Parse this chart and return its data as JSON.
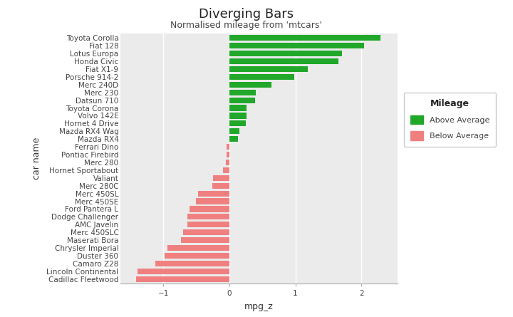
{
  "title": "Diverging Bars",
  "subtitle": "Normalised mileage from 'mtcars'",
  "xlabel": "mpg_z",
  "ylabel": "car name",
  "cars": [
    "Toyota Corolla",
    "Fiat 128",
    "Lotus Europa",
    "Honda Civic",
    "Fiat X1-9",
    "Porsche 914-2",
    "Merc 240D",
    "Merc 230",
    "Datsun 710",
    "Toyota Corona",
    "Volvo 142E",
    "Hornet 4 Drive",
    "Mazda RX4 Wag",
    "Mazda RX4",
    "Ferrari Dino",
    "Pontiac Firebird",
    "Merc 280",
    "Hornet Sportabout",
    "Valiant",
    "Merc 280C",
    "Merc 450SL",
    "Merc 450SE",
    "Ford Pantera L",
    "Dodge Challenger",
    "AMC Javelin",
    "Merc 450SLC",
    "Maserati Bora",
    "Chrysler Imperial",
    "Duster 360",
    "Camaro Z28",
    "Lincoln Continental",
    "Cadillac Fleetwood"
  ],
  "mpg_z": [
    2.2913,
    2.0452,
    1.7104,
    1.6563,
    1.1884,
    0.9806,
    0.6348,
    0.4038,
    0.3883,
    0.2609,
    0.2609,
    0.2454,
    0.1473,
    0.1318,
    -0.0425,
    -0.0425,
    -0.058,
    -0.1001,
    -0.2449,
    -0.2604,
    -0.4767,
    -0.5073,
    -0.6057,
    -0.6366,
    -0.6366,
    -0.7042,
    -0.7349,
    -0.9358,
    -0.982,
    -1.1215,
    -1.3961,
    -1.4147
  ],
  "above_color": "#21a82a",
  "below_color": "#f08080",
  "plot_bg_color": "#ebebeb",
  "fig_bg_color": "#ffffff",
  "grid_color": "#ffffff",
  "legend_above": "Above Average",
  "legend_below": "Below Average",
  "title_fontsize": 13,
  "subtitle_fontsize": 9,
  "axis_label_fontsize": 9,
  "tick_fontsize": 7.5,
  "legend_title_fontsize": 9,
  "legend_fontsize": 8
}
